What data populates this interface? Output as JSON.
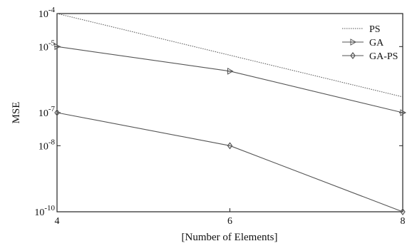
{
  "chart_data": {
    "type": "line",
    "xlabel": "[Number of Elements]",
    "ylabel": "MSE",
    "x_ticks": [
      4,
      6,
      8
    ],
    "xlim": [
      4,
      8
    ],
    "ylim": [
      1e-10,
      0.0001
    ],
    "y_scale": "log",
    "y_ticks": [
      {
        "mantissa": "10",
        "exponent": "-4",
        "value": 0.0001
      },
      {
        "mantissa": "10",
        "exponent": "-5",
        "value": 1e-05
      },
      {
        "mantissa": "10",
        "exponent": "-7",
        "value": 1e-07
      },
      {
        "mantissa": "10",
        "exponent": "-8",
        "value": 1e-08
      },
      {
        "mantissa": "10",
        "exponent": "-10",
        "value": 1e-10
      }
    ],
    "grid": false,
    "legend_position": "top-right",
    "series": [
      {
        "name": "PS",
        "style": "dotted",
        "color": "#555555",
        "marker": "none",
        "x": [
          4,
          8
        ],
        "y": [
          0.0001,
          3e-07
        ]
      },
      {
        "name": "GA",
        "style": "solid",
        "color": "#555555",
        "marker": "right-triangle",
        "x": [
          4,
          6,
          8
        ],
        "y": [
          1e-05,
          1.8e-06,
          1e-07
        ]
      },
      {
        "name": "GA-PS",
        "style": "solid",
        "color": "#555555",
        "marker": "diamond",
        "x": [
          4,
          6,
          8
        ],
        "y": [
          1e-07,
          1e-08,
          1e-10
        ]
      }
    ]
  }
}
